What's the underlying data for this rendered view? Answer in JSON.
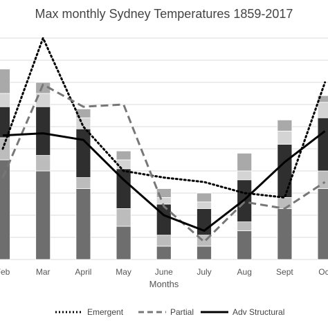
{
  "chart_data": {
    "type": "bar",
    "title": "Max monthly Sydney Temperatures 1859-2017",
    "xlabel": "Months",
    "ylabel": "",
    "grid": true,
    "legend_position": "bottom",
    "categories": [
      "Feb",
      "Mar",
      "April",
      "May",
      "June",
      "July",
      "Aug",
      "Sept",
      "Oct"
    ],
    "ylim": [
      0,
      10
    ],
    "stacked_segments": {
      "names": [
        "base",
        "lower-light",
        "middle-dark",
        "upper-light",
        "top-grey"
      ],
      "colors": [
        "#6e6e6e",
        "#bcbcbc",
        "#2f2f2f",
        "#d4d4d4",
        "#a9a9a9"
      ],
      "values": [
        [
          4.5,
          1.0,
          1.4,
          0.6,
          1.1
        ],
        [
          4.0,
          0.7,
          2.2,
          0.6,
          0.5
        ],
        [
          3.2,
          0.5,
          2.2,
          0.5,
          0.4
        ],
        [
          1.5,
          0.8,
          1.8,
          0.4,
          0.4
        ],
        [
          0.6,
          0.5,
          1.4,
          0.3,
          0.4
        ],
        [
          0.6,
          0.5,
          1.2,
          0.3,
          0.4
        ],
        [
          1.3,
          0.4,
          1.9,
          0.4,
          0.8
        ],
        [
          2.3,
          0.5,
          2.4,
          0.6,
          0.5
        ],
        [
          3.2,
          0.8,
          2.4,
          0.7,
          0.3
        ]
      ]
    },
    "series": [
      {
        "name": "Emergent",
        "style": "dotted",
        "values": [
          5.0,
          10.0,
          6.0,
          4.0,
          3.7,
          3.5,
          3.0,
          2.8,
          8.0
        ]
      },
      {
        "name": "Partial",
        "style": "dashed",
        "values": [
          3.7,
          7.9,
          6.9,
          7.0,
          2.4,
          0.8,
          2.6,
          2.3,
          3.5
        ]
      },
      {
        "name": "Adv Structural",
        "style": "solid",
        "values": [
          5.6,
          5.7,
          5.4,
          3.6,
          2.0,
          1.3,
          2.7,
          4.4,
          5.8
        ]
      }
    ],
    "colors": {
      "line": "#000000",
      "grid": "#d9d9d9",
      "text": "#444444",
      "axis": "#d9d9d9"
    }
  }
}
